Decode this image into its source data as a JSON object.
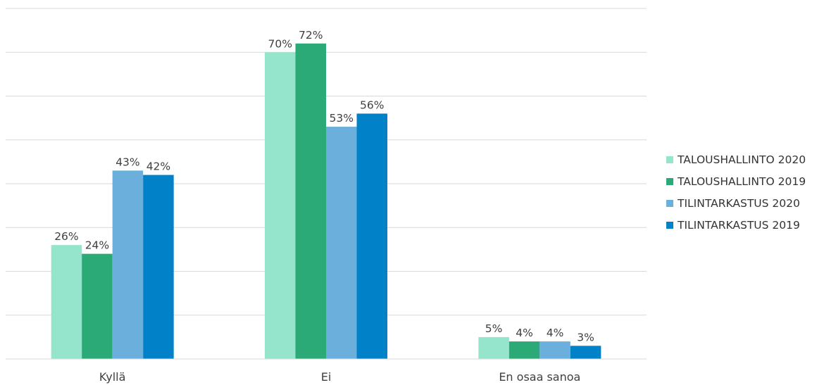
{
  "chart_data": {
    "type": "bar",
    "categories": [
      "Kyllä",
      "Ei",
      "En osaa sanoa"
    ],
    "series": [
      {
        "name": "TALOUSHALLINTO 2020",
        "values": [
          26,
          70,
          5
        ],
        "labels": [
          "26%",
          "70%",
          "5%"
        ],
        "color": "#95E5CC"
      },
      {
        "name": "TALOUSHALLINTO 2019",
        "values": [
          24,
          72,
          4
        ],
        "labels": [
          "24%",
          "72%",
          "4%"
        ],
        "color": "#2BAA78"
      },
      {
        "name": "TILINTARKASTUS 2020",
        "values": [
          43,
          53,
          4
        ],
        "labels": [
          "43%",
          "53%",
          "4%"
        ],
        "color": "#6BAFDD"
      },
      {
        "name": "TILINTARKASTUS 2019",
        "values": [
          42,
          56,
          3
        ],
        "labels": [
          "42%",
          "56%",
          "3%"
        ],
        "color": "#0181C7"
      }
    ],
    "ylim": [
      0,
      80
    ],
    "grid": true,
    "legend_position": "right",
    "title": "",
    "xlabel": "",
    "ylabel": ""
  }
}
